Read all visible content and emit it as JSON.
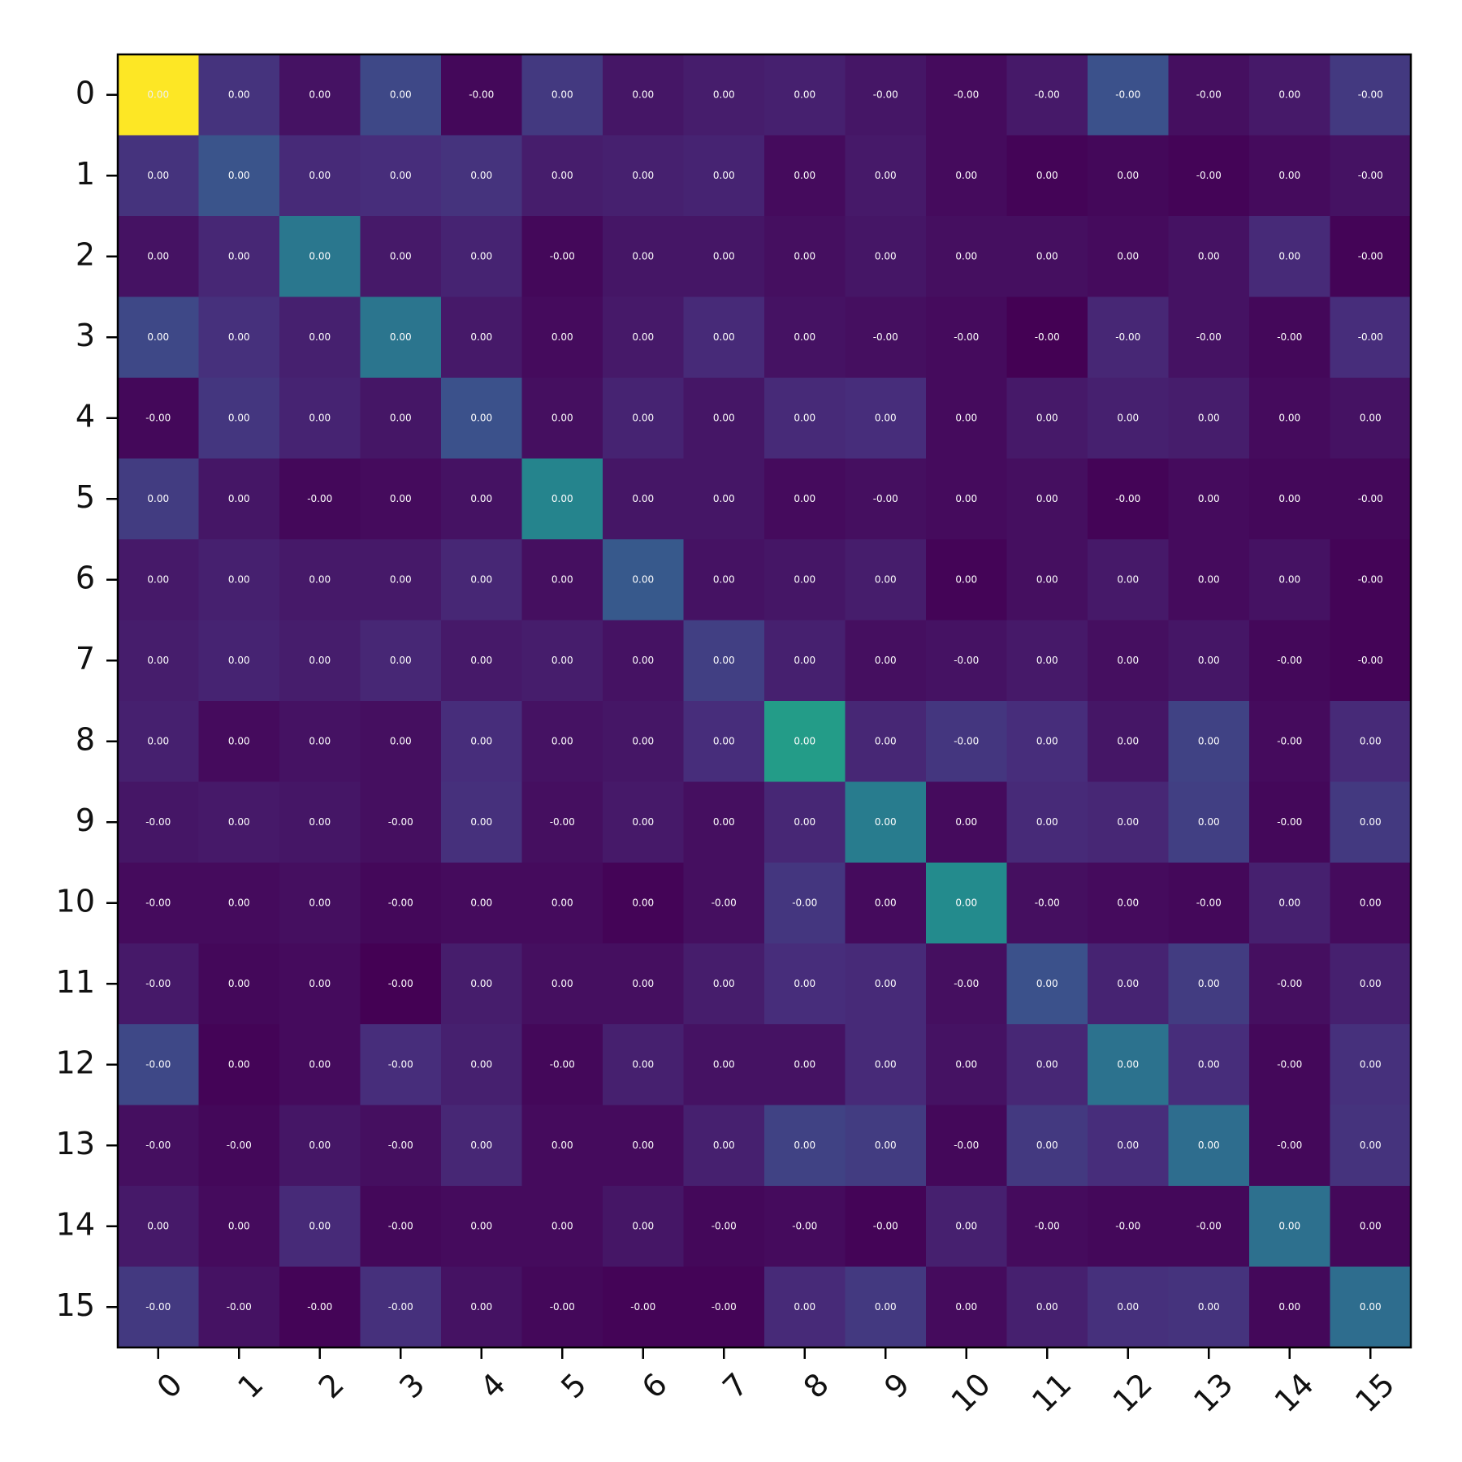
{
  "chart_data": {
    "type": "heatmap",
    "title": "",
    "xlabel": "",
    "ylabel": "",
    "colormap": "viridis",
    "x_categories": [
      "0",
      "1",
      "2",
      "3",
      "4",
      "5",
      "6",
      "7",
      "8",
      "9",
      "10",
      "11",
      "12",
      "13",
      "14",
      "15"
    ],
    "y_categories": [
      "0",
      "1",
      "2",
      "3",
      "4",
      "5",
      "6",
      "7",
      "8",
      "9",
      "10",
      "11",
      "12",
      "13",
      "14",
      "15"
    ],
    "cell_labels": [
      [
        "0.00",
        "0.00",
        "0.00",
        "0.00",
        "-0.00",
        "0.00",
        "0.00",
        "0.00",
        "0.00",
        "-0.00",
        "-0.00",
        "-0.00",
        "-0.00",
        "-0.00",
        "0.00",
        "-0.00"
      ],
      [
        "0.00",
        "0.00",
        "0.00",
        "0.00",
        "0.00",
        "0.00",
        "0.00",
        "0.00",
        "0.00",
        "0.00",
        "0.00",
        "0.00",
        "0.00",
        "-0.00",
        "0.00",
        "-0.00"
      ],
      [
        "0.00",
        "0.00",
        "0.00",
        "0.00",
        "0.00",
        "-0.00",
        "0.00",
        "0.00",
        "0.00",
        "0.00",
        "0.00",
        "0.00",
        "0.00",
        "0.00",
        "0.00",
        "-0.00"
      ],
      [
        "0.00",
        "0.00",
        "0.00",
        "0.00",
        "0.00",
        "0.00",
        "0.00",
        "0.00",
        "0.00",
        "-0.00",
        "-0.00",
        "-0.00",
        "-0.00",
        "-0.00",
        "-0.00",
        "-0.00"
      ],
      [
        "-0.00",
        "0.00",
        "0.00",
        "0.00",
        "0.00",
        "0.00",
        "0.00",
        "0.00",
        "0.00",
        "0.00",
        "0.00",
        "0.00",
        "0.00",
        "0.00",
        "0.00",
        "0.00"
      ],
      [
        "0.00",
        "0.00",
        "-0.00",
        "0.00",
        "0.00",
        "0.00",
        "0.00",
        "0.00",
        "0.00",
        "-0.00",
        "0.00",
        "0.00",
        "-0.00",
        "0.00",
        "0.00",
        "-0.00"
      ],
      [
        "0.00",
        "0.00",
        "0.00",
        "0.00",
        "0.00",
        "0.00",
        "0.00",
        "0.00",
        "0.00",
        "0.00",
        "0.00",
        "0.00",
        "0.00",
        "0.00",
        "0.00",
        "-0.00"
      ],
      [
        "0.00",
        "0.00",
        "0.00",
        "0.00",
        "0.00",
        "0.00",
        "0.00",
        "0.00",
        "0.00",
        "0.00",
        "-0.00",
        "0.00",
        "0.00",
        "0.00",
        "-0.00",
        "-0.00"
      ],
      [
        "0.00",
        "0.00",
        "0.00",
        "0.00",
        "0.00",
        "0.00",
        "0.00",
        "0.00",
        "0.00",
        "0.00",
        "-0.00",
        "0.00",
        "0.00",
        "0.00",
        "-0.00",
        "0.00"
      ],
      [
        "-0.00",
        "0.00",
        "0.00",
        "-0.00",
        "0.00",
        "-0.00",
        "0.00",
        "0.00",
        "0.00",
        "0.00",
        "0.00",
        "0.00",
        "0.00",
        "0.00",
        "-0.00",
        "0.00"
      ],
      [
        "-0.00",
        "0.00",
        "0.00",
        "-0.00",
        "0.00",
        "0.00",
        "0.00",
        "-0.00",
        "-0.00",
        "0.00",
        "0.00",
        "-0.00",
        "0.00",
        "-0.00",
        "0.00",
        "0.00"
      ],
      [
        "-0.00",
        "0.00",
        "0.00",
        "-0.00",
        "0.00",
        "0.00",
        "0.00",
        "0.00",
        "0.00",
        "0.00",
        "-0.00",
        "0.00",
        "0.00",
        "0.00",
        "-0.00",
        "0.00"
      ],
      [
        "-0.00",
        "0.00",
        "0.00",
        "-0.00",
        "0.00",
        "-0.00",
        "0.00",
        "0.00",
        "0.00",
        "0.00",
        "0.00",
        "0.00",
        "0.00",
        "0.00",
        "-0.00",
        "0.00"
      ],
      [
        "-0.00",
        "-0.00",
        "0.00",
        "-0.00",
        "0.00",
        "0.00",
        "0.00",
        "0.00",
        "0.00",
        "0.00",
        "-0.00",
        "0.00",
        "0.00",
        "0.00",
        "-0.00",
        "0.00"
      ],
      [
        "0.00",
        "0.00",
        "0.00",
        "-0.00",
        "0.00",
        "0.00",
        "0.00",
        "-0.00",
        "-0.00",
        "-0.00",
        "0.00",
        "-0.00",
        "-0.00",
        "-0.00",
        "0.00",
        "0.00"
      ],
      [
        "-0.00",
        "-0.00",
        "-0.00",
        "-0.00",
        "0.00",
        "-0.00",
        "-0.00",
        "-0.00",
        "0.00",
        "0.00",
        "0.00",
        "0.00",
        "0.00",
        "0.00",
        "0.00",
        "0.00"
      ]
    ],
    "intensity": [
      [
        1.0,
        0.15,
        0.05,
        0.22,
        0.02,
        0.17,
        0.06,
        0.08,
        0.09,
        0.06,
        0.03,
        0.07,
        0.25,
        0.04,
        0.07,
        0.17
      ],
      [
        0.15,
        0.26,
        0.12,
        0.13,
        0.15,
        0.08,
        0.09,
        0.1,
        0.03,
        0.07,
        0.03,
        0.01,
        0.02,
        0.01,
        0.03,
        0.05
      ],
      [
        0.05,
        0.11,
        0.4,
        0.07,
        0.1,
        0.02,
        0.06,
        0.06,
        0.04,
        0.06,
        0.04,
        0.04,
        0.03,
        0.05,
        0.12,
        0.01
      ],
      [
        0.22,
        0.14,
        0.09,
        0.39,
        0.07,
        0.03,
        0.07,
        0.12,
        0.05,
        0.04,
        0.03,
        0.0,
        0.11,
        0.05,
        0.02,
        0.13
      ],
      [
        0.02,
        0.16,
        0.1,
        0.06,
        0.25,
        0.04,
        0.1,
        0.06,
        0.12,
        0.13,
        0.03,
        0.07,
        0.09,
        0.08,
        0.03,
        0.05
      ],
      [
        0.18,
        0.06,
        0.02,
        0.03,
        0.05,
        0.45,
        0.06,
        0.06,
        0.03,
        0.04,
        0.03,
        0.04,
        0.01,
        0.03,
        0.02,
        0.02
      ],
      [
        0.07,
        0.09,
        0.07,
        0.07,
        0.11,
        0.04,
        0.28,
        0.05,
        0.06,
        0.08,
        0.01,
        0.04,
        0.07,
        0.03,
        0.05,
        0.01
      ],
      [
        0.08,
        0.1,
        0.08,
        0.11,
        0.07,
        0.08,
        0.05,
        0.19,
        0.09,
        0.04,
        0.05,
        0.07,
        0.04,
        0.06,
        0.02,
        0.01
      ],
      [
        0.09,
        0.03,
        0.05,
        0.04,
        0.13,
        0.05,
        0.06,
        0.13,
        0.55,
        0.11,
        0.16,
        0.13,
        0.06,
        0.2,
        0.03,
        0.12
      ],
      [
        0.06,
        0.07,
        0.06,
        0.04,
        0.14,
        0.04,
        0.07,
        0.04,
        0.11,
        0.42,
        0.03,
        0.12,
        0.11,
        0.19,
        0.02,
        0.17
      ],
      [
        0.03,
        0.03,
        0.04,
        0.02,
        0.03,
        0.03,
        0.01,
        0.04,
        0.16,
        0.03,
        0.48,
        0.04,
        0.03,
        0.02,
        0.09,
        0.03
      ],
      [
        0.07,
        0.02,
        0.03,
        0.0,
        0.08,
        0.04,
        0.04,
        0.08,
        0.13,
        0.12,
        0.04,
        0.25,
        0.1,
        0.18,
        0.04,
        0.09
      ],
      [
        0.22,
        0.01,
        0.03,
        0.13,
        0.09,
        0.02,
        0.09,
        0.05,
        0.05,
        0.12,
        0.05,
        0.11,
        0.38,
        0.13,
        0.02,
        0.14
      ],
      [
        0.04,
        0.02,
        0.06,
        0.04,
        0.11,
        0.03,
        0.03,
        0.09,
        0.2,
        0.18,
        0.02,
        0.17,
        0.13,
        0.36,
        0.02,
        0.15
      ],
      [
        0.07,
        0.03,
        0.12,
        0.02,
        0.03,
        0.03,
        0.06,
        0.02,
        0.03,
        0.01,
        0.09,
        0.03,
        0.02,
        0.02,
        0.37,
        0.02
      ],
      [
        0.17,
        0.05,
        0.01,
        0.14,
        0.05,
        0.02,
        0.01,
        0.01,
        0.12,
        0.17,
        0.03,
        0.09,
        0.14,
        0.15,
        0.02,
        0.36
      ]
    ]
  }
}
